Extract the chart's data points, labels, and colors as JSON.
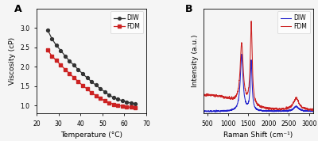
{
  "panel_a": {
    "title": "A",
    "xlabel": "Temperature (°C)",
    "ylabel": "Viscosity (cP)",
    "xlim": [
      20,
      70
    ],
    "ylim": [
      0.8,
      3.5
    ],
    "yticks": [
      1.0,
      1.5,
      2.0,
      2.5,
      3.0
    ],
    "xticks": [
      20,
      30,
      40,
      50,
      60,
      70
    ],
    "DIW_x": [
      25,
      27,
      29,
      31,
      33,
      35,
      37,
      39,
      41,
      43,
      45,
      47,
      49,
      51,
      53,
      55,
      57,
      59,
      61,
      63,
      65
    ],
    "DIW_y": [
      2.95,
      2.72,
      2.55,
      2.42,
      2.28,
      2.15,
      2.04,
      1.93,
      1.82,
      1.72,
      1.62,
      1.53,
      1.44,
      1.36,
      1.28,
      1.21,
      1.17,
      1.13,
      1.1,
      1.07,
      1.05
    ],
    "FDM_x": [
      25,
      27,
      29,
      31,
      33,
      35,
      37,
      39,
      41,
      43,
      45,
      47,
      49,
      51,
      53,
      55,
      57,
      59,
      61,
      63,
      65
    ],
    "FDM_y": [
      2.43,
      2.28,
      2.16,
      2.05,
      1.93,
      1.83,
      1.72,
      1.62,
      1.52,
      1.43,
      1.34,
      1.26,
      1.19,
      1.13,
      1.08,
      1.04,
      1.01,
      0.99,
      0.97,
      0.96,
      0.95
    ],
    "DIW_color": "#333333",
    "FDM_color": "#cc2222",
    "DIW_marker": "o",
    "FDM_marker": "s"
  },
  "panel_b": {
    "title": "B",
    "xlabel": "Raman Shift (cm⁻¹)",
    "ylabel": "Intensity (a.u.)",
    "xlim": [
      400,
      3100
    ],
    "ylim_fdm": [
      0,
      1.15
    ],
    "xticks": [
      500,
      1000,
      1500,
      2000,
      2500,
      3000
    ],
    "DIW_color": "#2222cc",
    "FDM_color": "#cc2222"
  },
  "fig_bg": "#f0f0f0"
}
